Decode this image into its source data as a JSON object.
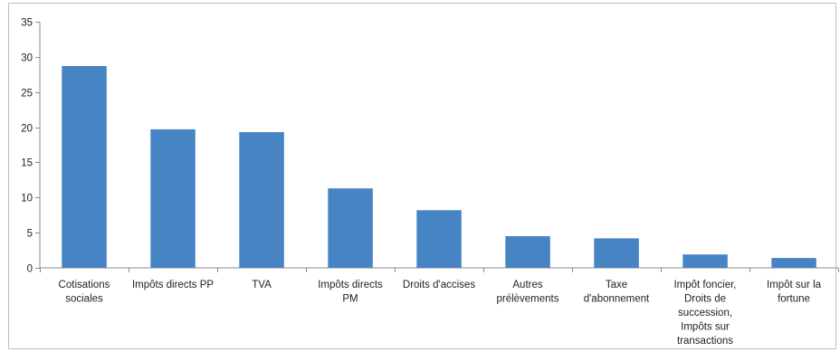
{
  "chart_data": {
    "type": "bar",
    "title": "",
    "xlabel": "",
    "ylabel": "",
    "ylim": [
      0,
      35
    ],
    "yticks": [
      0,
      5,
      10,
      15,
      20,
      25,
      30,
      35
    ],
    "grid": false,
    "legend": "none",
    "bar_color": "#4684c4",
    "categories": [
      [
        "Cotisations",
        "sociales"
      ],
      [
        "Impôts directs PP"
      ],
      [
        "TVA"
      ],
      [
        "Impôts directs",
        "PM"
      ],
      [
        "Droits d'accises"
      ],
      [
        "Autres",
        "prélèvements"
      ],
      [
        "Taxe",
        "d'abonnement"
      ],
      [
        "Impôt foncier,",
        "Droits de",
        "succession,",
        "Impôts sur",
        "transactions"
      ],
      [
        "Impôt sur la",
        "fortune"
      ]
    ],
    "values": [
      28.7,
      19.7,
      19.3,
      11.3,
      8.2,
      4.5,
      4.2,
      1.9,
      1.4
    ]
  }
}
